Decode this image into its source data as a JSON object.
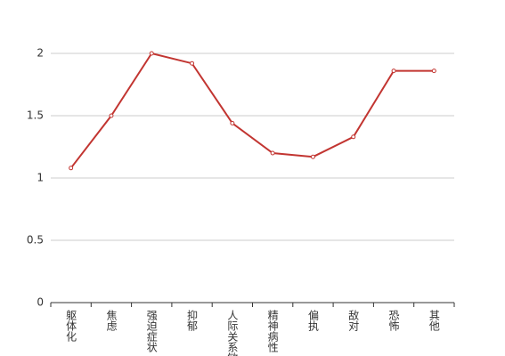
{
  "chart_data": {
    "type": "line",
    "categories": [
      "躯体化",
      "焦虑",
      "强迫症状",
      "抑郁",
      "人际关系敏感",
      "精神病性",
      "偏执",
      "敌对",
      "恐怖",
      "其他"
    ],
    "series": [
      {
        "name": null,
        "color": "#c23531",
        "values": [
          1.08,
          1.5,
          2.0,
          1.92,
          1.44,
          1.2,
          1.17,
          1.33,
          1.86,
          1.86
        ]
      }
    ],
    "ylim": [
      0,
      2
    ],
    "yticks": [
      0,
      0.5,
      1,
      1.5,
      2
    ],
    "grid": true
  }
}
